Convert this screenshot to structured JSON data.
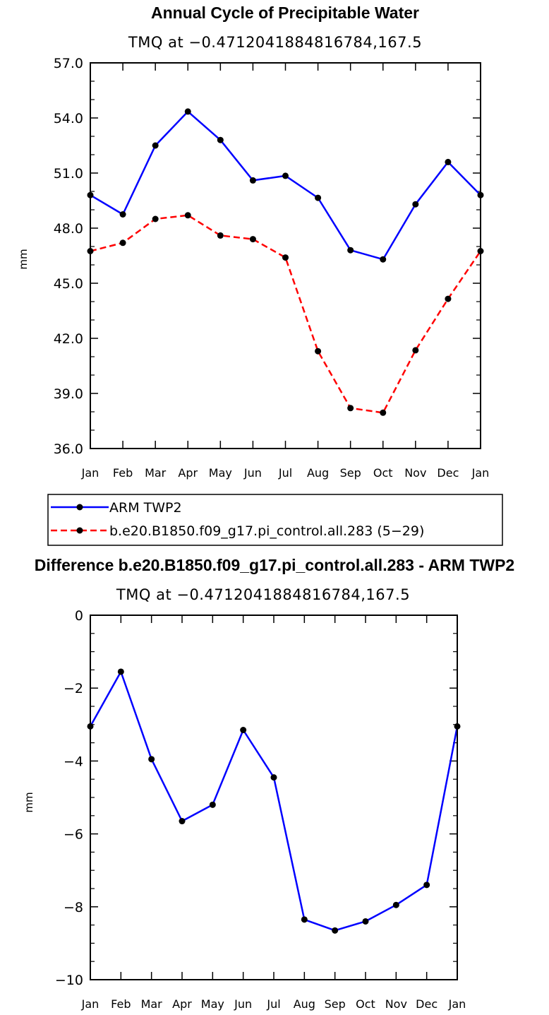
{
  "chart_data": [
    {
      "type": "line",
      "title": "Annual Cycle of Precipitable Water",
      "subtitle": "TMQ at −0.4712041884816784,167.5",
      "ylabel": "mm",
      "xlabel": "",
      "ylim": [
        36.0,
        57.0
      ],
      "yticks": [
        "36.0",
        "39.0",
        "42.0",
        "45.0",
        "48.0",
        "51.0",
        "54.0",
        "57.0"
      ],
      "categories": [
        "Jan",
        "Feb",
        "Mar",
        "Apr",
        "May",
        "Jun",
        "Jul",
        "Aug",
        "Sep",
        "Oct",
        "Nov",
        "Dec",
        "Jan"
      ],
      "series": [
        {
          "name": "ARM TWP2",
          "color": "#0000ff",
          "dash": "solid",
          "values": [
            49.8,
            48.75,
            52.5,
            54.35,
            52.8,
            50.6,
            50.85,
            49.65,
            46.8,
            46.3,
            49.3,
            51.6,
            49.8
          ]
        },
        {
          "name": "b.e20.B1850.f09_g17.pi_control.all.283 (5−29)",
          "color": "#ff0000",
          "dash": "dashed",
          "values": [
            46.75,
            47.2,
            48.5,
            48.7,
            47.6,
            47.4,
            46.4,
            41.3,
            38.2,
            37.95,
            41.35,
            44.15,
            46.75
          ]
        }
      ],
      "legend": "below",
      "grid": false
    },
    {
      "type": "line",
      "title": "Difference b.e20.B1850.f09_g17.pi_control.all.283 - ARM TWP2",
      "subtitle": "TMQ at −0.4712041884816784,167.5",
      "ylabel": "mm",
      "xlabel": "",
      "ylim": [
        -10,
        0
      ],
      "yticks": [
        "−10",
        "−8",
        "−6",
        "−4",
        "−2",
        "0"
      ],
      "categories": [
        "Jan",
        "Feb",
        "Mar",
        "Apr",
        "May",
        "Jun",
        "Jul",
        "Aug",
        "Sep",
        "Oct",
        "Nov",
        "Dec",
        "Jan"
      ],
      "series": [
        {
          "color": "#0000ff",
          "dash": "solid",
          "values": [
            -3.05,
            -1.55,
            -3.95,
            -5.65,
            -5.2,
            -3.15,
            -4.45,
            -8.35,
            -8.65,
            -8.4,
            -7.95,
            -7.4,
            -3.05
          ]
        }
      ],
      "grid": false
    }
  ]
}
